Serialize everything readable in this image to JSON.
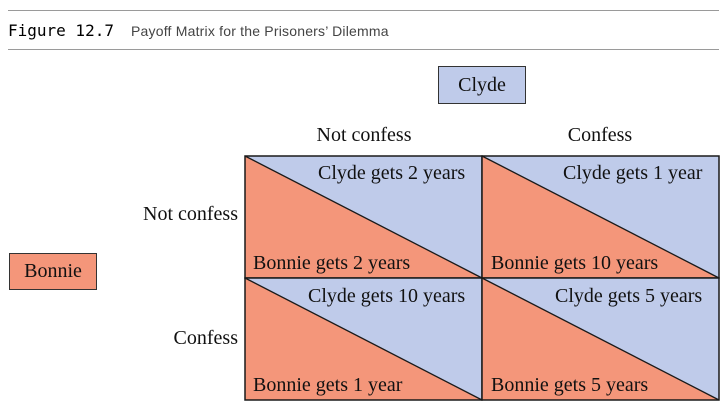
{
  "figure": {
    "label": "Figure 12.7",
    "title": "Payoff Matrix for the Prisoners’ Dilemma"
  },
  "players": {
    "column": "Clyde",
    "row": "Bonnie"
  },
  "columns": [
    "Not confess",
    "Confess"
  ],
  "rows": [
    "Not confess",
    "Confess"
  ],
  "cells": [
    {
      "clyde": "Clyde gets 2 years",
      "bonnie": "Bonnie gets 2 years"
    },
    {
      "clyde": "Clyde gets 1 year",
      "bonnie": "Bonnie gets 10 years"
    },
    {
      "clyde": "Clyde gets 10 years",
      "bonnie": "Bonnie gets 1 year"
    },
    {
      "clyde": "Clyde gets 5 years",
      "bonnie": "Bonnie gets 5 years"
    }
  ],
  "colors": {
    "clyde": "#bfcbea",
    "bonnie": "#f4967a",
    "line": "#1a1a1a"
  }
}
